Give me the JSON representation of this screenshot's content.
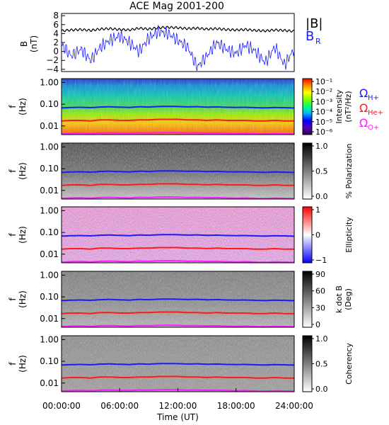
{
  "title": "ACE Mag 2001-200",
  "x_axis": {
    "label": "Time (UT)",
    "ticks": [
      "00:00:00",
      "06:00:00",
      "12:00:00",
      "18:00:00",
      "24:00:00"
    ],
    "range_hours": [
      0,
      24
    ]
  },
  "freq_axis": {
    "label": "f",
    "unit": "(Hz)",
    "ticks": [
      "1.00",
      "0.10",
      "0.01"
    ],
    "scale": "log",
    "range_hz": [
      0.004,
      1.5
    ]
  },
  "top_panel": {
    "ylabel": "B",
    "yunit": "(nT)",
    "ticks": [
      "8",
      "6",
      "4",
      "2",
      "0",
      "−2",
      "−4"
    ],
    "ylim": [
      -4.5,
      8.5
    ],
    "legend": {
      "magnitude": "|B|",
      "radial": "B",
      "radial_sub": "R"
    },
    "colors": {
      "magnitude": "#000000",
      "radial": "#1a1aff"
    }
  },
  "gyro_legend": [
    {
      "symbol": "Ω",
      "sub": "H+",
      "color": "#1a1aff"
    },
    {
      "symbol": "Ω",
      "sub": "He+",
      "color": "#ff1a1a"
    },
    {
      "symbol": "Ω",
      "sub": "O+",
      "color": "#ff1aff"
    }
  ],
  "panels": [
    {
      "name": "intensity",
      "colorbar": "rainbow",
      "cb_ticks": [
        "10⁻¹",
        "10⁻²",
        "10⁻³",
        "10⁻⁴",
        "10⁻⁵",
        "10⁻⁶"
      ],
      "cb_label1": "Intensity",
      "cb_label2": "(nT²/Hz)"
    },
    {
      "name": "polarization",
      "colorbar": "gray",
      "cb_ticks": [
        "1.0",
        "0.5",
        "0.0"
      ],
      "cb_label1": "% Polarization",
      "cb_label2": ""
    },
    {
      "name": "ellipticity",
      "colorbar": "bwr",
      "cb_ticks": [
        "1",
        "0",
        "−1"
      ],
      "cb_label1": "Ellipticity",
      "cb_label2": ""
    },
    {
      "name": "kdotb",
      "colorbar": "gray",
      "cb_ticks": [
        "90",
        "60",
        "30",
        "0"
      ],
      "cb_label1": "k dot B",
      "cb_label2": "(Deg)"
    },
    {
      "name": "coherency",
      "colorbar": "gray",
      "cb_ticks": [
        "1.0",
        "0.5",
        "0.0"
      ],
      "cb_label1": "Coherency",
      "cb_label2": ""
    }
  ],
  "chart_data": {
    "type": "line",
    "title": "ACE Mag 2001-200",
    "xlabel": "Time (UT)",
    "x_hours": [
      0,
      1,
      2,
      3,
      4,
      5,
      6,
      7,
      8,
      9,
      10,
      11,
      12,
      13,
      14,
      15,
      16,
      17,
      18,
      19,
      20,
      21,
      22,
      23,
      24
    ],
    "series": [
      {
        "name": "|B|",
        "unit": "nT",
        "values": [
          4.6,
          4.8,
          4.9,
          4.7,
          5.0,
          5.1,
          4.9,
          4.8,
          5.2,
          5.0,
          5.3,
          5.4,
          5.3,
          5.1,
          5.2,
          5.0,
          5.1,
          4.9,
          4.8,
          4.9,
          4.7,
          4.6,
          4.8,
          4.7,
          4.5
        ]
      },
      {
        "name": "BR",
        "unit": "nT",
        "values": [
          1.5,
          -1.0,
          0.5,
          -2.0,
          1.0,
          2.5,
          3.5,
          2.0,
          0.0,
          3.0,
          4.5,
          4.0,
          2.5,
          1.0,
          -3.5,
          -1.0,
          2.0,
          0.5,
          -0.5,
          1.5,
          0.0,
          -2.5,
          1.0,
          -3.0,
          0.5
        ]
      }
    ],
    "gyrofrequency_hz": {
      "H+": [
        0.068,
        0.07,
        0.072,
        0.069,
        0.074,
        0.076,
        0.073,
        0.071,
        0.076,
        0.074,
        0.078,
        0.079,
        0.078,
        0.075,
        0.077,
        0.073,
        0.075,
        0.072,
        0.071,
        0.072,
        0.069,
        0.068,
        0.07,
        0.069,
        0.067
      ],
      "He+": [
        0.017,
        0.018,
        0.018,
        0.017,
        0.019,
        0.019,
        0.018,
        0.018,
        0.019,
        0.019,
        0.02,
        0.02,
        0.02,
        0.019,
        0.019,
        0.018,
        0.019,
        0.018,
        0.018,
        0.018,
        0.017,
        0.017,
        0.018,
        0.017,
        0.017
      ],
      "O+": [
        0.0043,
        0.0045,
        0.0046,
        0.0044,
        0.0047,
        0.0048,
        0.0046,
        0.0045,
        0.0048,
        0.0047,
        0.0049,
        0.005,
        0.0049,
        0.0047,
        0.0048,
        0.0046,
        0.0047,
        0.0045,
        0.0044,
        0.0045,
        0.0043,
        0.0042,
        0.0044,
        0.0043,
        0.0042
      ]
    },
    "ylabel": "B (nT)",
    "ylim": [
      -4.5,
      8.5
    ],
    "grid": false
  }
}
